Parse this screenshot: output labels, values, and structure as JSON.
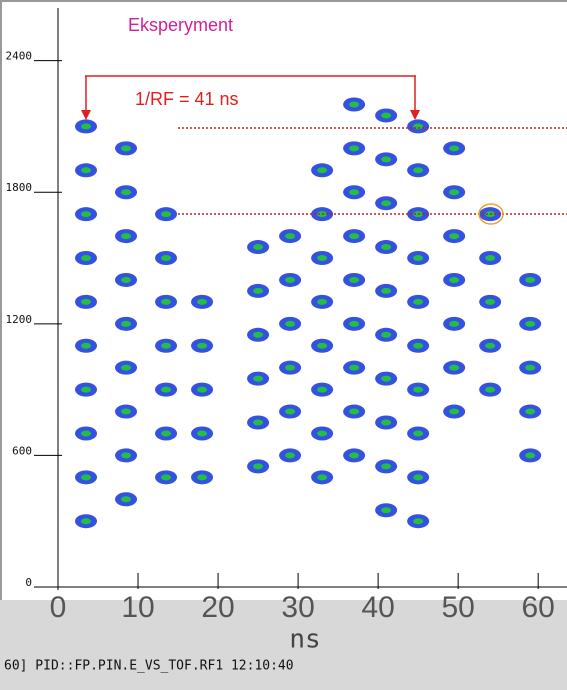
{
  "chart_data": {
    "type": "scatter",
    "title": "Eksperyment",
    "annotation": "1/RF = 41 ns",
    "x_label": "ns",
    "status": "60] PID::FP.PIN.E_VS_TOF.RF1   12:10:40",
    "color": "#1133dd",
    "peak_color": "#22c040",
    "x": [
      3.5,
      3.5,
      3.5,
      3.5,
      3.5,
      3.5,
      3.5,
      3.5,
      3.5,
      3.5,
      8.5,
      8.5,
      8.5,
      8.5,
      8.5,
      8.5,
      8.5,
      8.5,
      8.5,
      13.5,
      13.5,
      13.5,
      13.5,
      13.5,
      13.5,
      13.5,
      18,
      18,
      18,
      18,
      18,
      25,
      25,
      25,
      25,
      25,
      25,
      29,
      29,
      29,
      29,
      29,
      29,
      33,
      33,
      33,
      33,
      33,
      33,
      33,
      33,
      37,
      37,
      37,
      37,
      37,
      37,
      37,
      37,
      37,
      41,
      41,
      41,
      41,
      41,
      41,
      41,
      41,
      41,
      41,
      45,
      45,
      45,
      45,
      45,
      45,
      45,
      45,
      45,
      45,
      49.5,
      49.5,
      49.5,
      49.5,
      49.5,
      49.5,
      49.5,
      54,
      54,
      54,
      54,
      54,
      59,
      59,
      59,
      59,
      59
    ],
    "values": [
      2100,
      1900,
      1700,
      1500,
      1300,
      1100,
      900,
      700,
      500,
      300,
      2000,
      1800,
      1600,
      1400,
      1200,
      1000,
      800,
      600,
      400,
      1700,
      1500,
      1300,
      1100,
      900,
      700,
      500,
      1300,
      1100,
      900,
      700,
      500,
      1550,
      1350,
      1150,
      950,
      750,
      550,
      1600,
      1400,
      1200,
      1000,
      800,
      600,
      1900,
      1700,
      1500,
      1300,
      1100,
      900,
      700,
      500,
      2200,
      2000,
      1800,
      1600,
      1400,
      1200,
      1000,
      800,
      600,
      2150,
      1950,
      1750,
      1550,
      1350,
      1150,
      950,
      750,
      550,
      350,
      2100,
      1900,
      1700,
      1500,
      1300,
      1100,
      900,
      700,
      500,
      300,
      2000,
      1800,
      1600,
      1400,
      1200,
      1000,
      800,
      1700,
      1500,
      1300,
      1100,
      900,
      1400,
      1200,
      1000,
      800,
      600
    ],
    "xlim": [
      0,
      63.6
    ],
    "ylim": [
      0,
      2640
    ],
    "xticks": [
      0,
      10,
      20,
      30,
      40,
      50,
      60
    ],
    "yticks": [
      0,
      600,
      1200,
      1800,
      2400
    ]
  }
}
